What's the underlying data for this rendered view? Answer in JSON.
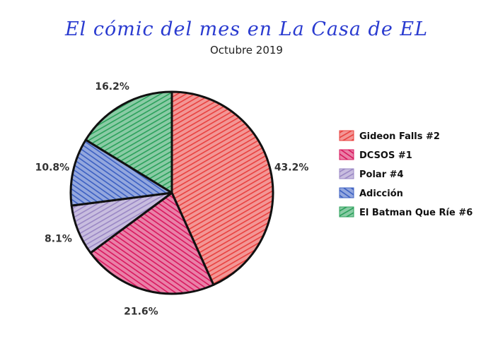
{
  "title": "El cómic del mes en La Casa de EL",
  "subtitle": "Octubre 2019",
  "chart_data": {
    "type": "pie",
    "title": "El cómic del mes en La Casa de EL",
    "subtitle": "Octubre 2019",
    "legend_position": "right",
    "slices": [
      {
        "label": "Gideon Falls #2",
        "value": 43.2,
        "display": "43.2%",
        "color": "#e8403e"
      },
      {
        "label": "DCSOS #1",
        "value": 21.6,
        "display": "21.6%",
        "color": "#d8175e"
      },
      {
        "label": "Polar #4",
        "value": 8.1,
        "display": "8.1%",
        "color": "#9a87c4"
      },
      {
        "label": "Adicción",
        "value": 10.8,
        "display": "10.8%",
        "color": "#3b5fc2"
      },
      {
        "label": "El Batman Que Ríe #6",
        "value": 16.2,
        "display": "16.2%",
        "color": "#2aa05a"
      }
    ]
  }
}
